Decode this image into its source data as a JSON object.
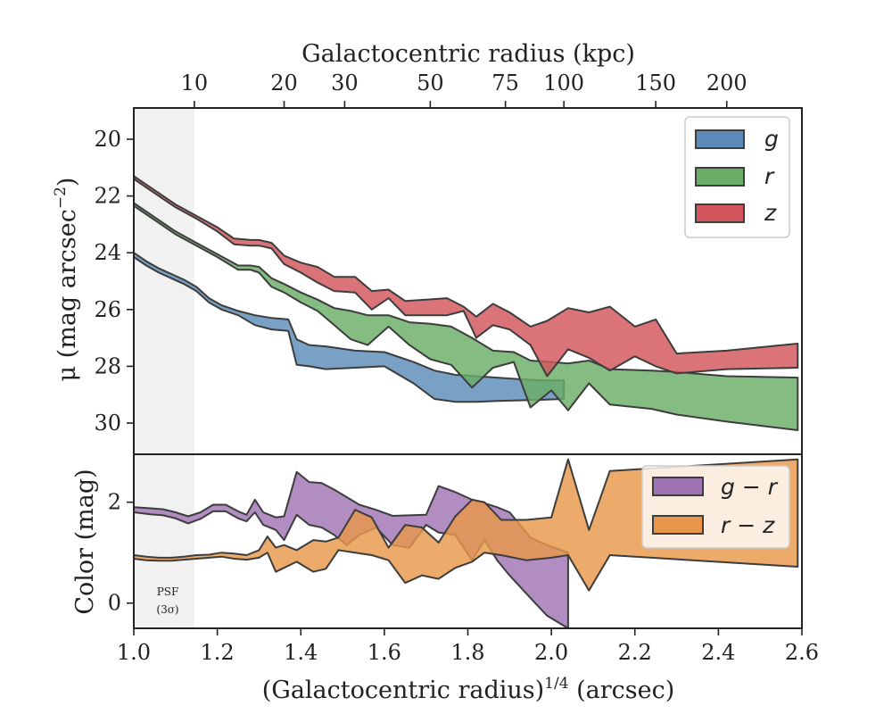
{
  "chart_data": [
    {
      "type": "area",
      "panel": "top",
      "xlabel": "(Galactocentric radius)",
      "xlabel_sup": "1/4",
      "xlabel_unit": "(arcsec)",
      "ylabel_prefix": "μ (mag arcsec",
      "ylabel_sup": "−2",
      "ylabel_suffix": ")",
      "top_xlabel": "Galactocentric radius (kpc)",
      "xlim": [
        1.0,
        2.6
      ],
      "ylim": [
        31.1,
        18.9
      ],
      "y_inverted": true,
      "yticks": [
        20,
        22,
        24,
        26,
        28,
        30
      ],
      "top_ticks": [
        {
          "label": "10",
          "x": 1.145
        },
        {
          "label": "20",
          "x": 1.36
        },
        {
          "label": "30",
          "x": 1.505
        },
        {
          "label": "50",
          "x": 1.71
        },
        {
          "label": "75",
          "x": 1.89
        },
        {
          "label": "100",
          "x": 2.03
        },
        {
          "label": "150",
          "x": 2.25
        },
        {
          "label": "200",
          "x": 2.42
        }
      ],
      "psf_shade_xmax": 1.145,
      "legend_position": "upper-right",
      "series": [
        {
          "name": "g",
          "color": "#5b8bb8",
          "x": [
            1.0,
            1.03,
            1.06,
            1.09,
            1.12,
            1.15,
            1.18,
            1.21,
            1.25,
            1.29,
            1.33,
            1.37,
            1.39,
            1.42,
            1.46,
            1.53,
            1.6,
            1.67,
            1.72,
            1.77,
            1.82,
            1.87,
            1.92,
            1.98,
            2.03
          ],
          "y_upper": [
            24.0,
            24.3,
            24.55,
            24.75,
            24.95,
            25.2,
            25.6,
            25.85,
            26.05,
            26.2,
            26.3,
            26.35,
            27.05,
            27.25,
            27.3,
            27.45,
            27.5,
            27.85,
            28.15,
            28.3,
            28.35,
            28.4,
            28.45,
            28.5,
            28.5
          ],
          "y_lower": [
            24.15,
            24.45,
            24.7,
            24.9,
            25.1,
            25.35,
            25.75,
            26.0,
            26.2,
            26.55,
            26.7,
            26.75,
            27.95,
            28.0,
            28.1,
            28.05,
            28.0,
            28.6,
            29.15,
            29.25,
            29.25,
            29.22,
            29.2,
            29.18,
            29.15
          ]
        },
        {
          "name": "r",
          "color": "#6aad66",
          "x": [
            1.0,
            1.05,
            1.1,
            1.15,
            1.2,
            1.25,
            1.28,
            1.3,
            1.33,
            1.36,
            1.4,
            1.44,
            1.48,
            1.52,
            1.56,
            1.61,
            1.66,
            1.71,
            1.76,
            1.81,
            1.86,
            1.91,
            1.95,
            2.0,
            2.04,
            2.09,
            2.14,
            2.24,
            2.3,
            2.42,
            2.59
          ],
          "y_upper": [
            22.25,
            22.75,
            23.25,
            23.65,
            24.05,
            24.45,
            24.45,
            24.5,
            24.9,
            25.1,
            25.4,
            25.65,
            25.95,
            26.05,
            26.2,
            26.2,
            26.45,
            26.5,
            26.6,
            27.0,
            27.45,
            27.5,
            27.8,
            27.85,
            27.9,
            27.8,
            28.1,
            28.15,
            28.2,
            28.35,
            28.4
          ],
          "y_lower": [
            22.35,
            22.85,
            23.35,
            23.75,
            24.15,
            24.6,
            24.6,
            24.7,
            25.2,
            25.4,
            25.75,
            26.05,
            26.55,
            27.05,
            27.25,
            26.6,
            27.25,
            27.75,
            27.95,
            28.75,
            28.05,
            27.85,
            29.45,
            28.85,
            29.55,
            28.6,
            29.35,
            29.5,
            29.7,
            29.95,
            30.25
          ]
        },
        {
          "name": "z",
          "color": "#d3565c",
          "x": [
            1.0,
            1.05,
            1.1,
            1.15,
            1.2,
            1.24,
            1.28,
            1.3,
            1.33,
            1.36,
            1.4,
            1.44,
            1.48,
            1.53,
            1.57,
            1.61,
            1.65,
            1.7,
            1.75,
            1.79,
            1.82,
            1.86,
            1.9,
            1.95,
            1.99,
            2.04,
            2.09,
            2.14,
            2.2,
            2.25,
            2.3,
            2.42,
            2.59
          ],
          "y_upper": [
            21.3,
            21.8,
            22.3,
            22.7,
            23.1,
            23.5,
            23.55,
            23.55,
            23.65,
            24.1,
            24.35,
            24.5,
            24.85,
            24.85,
            25.35,
            25.3,
            25.7,
            25.65,
            25.6,
            25.9,
            26.25,
            25.8,
            26.1,
            26.6,
            26.4,
            25.95,
            26.1,
            25.9,
            26.6,
            26.35,
            27.55,
            27.45,
            27.2
          ],
          "y_lower": [
            21.4,
            21.9,
            22.4,
            22.8,
            23.25,
            23.7,
            23.75,
            23.75,
            23.85,
            24.4,
            24.7,
            25.05,
            25.35,
            25.4,
            26.0,
            25.6,
            26.2,
            26.2,
            26.2,
            26.05,
            27.0,
            26.55,
            26.7,
            27.25,
            28.35,
            27.4,
            27.7,
            28.15,
            27.65,
            28.0,
            28.25,
            28.1,
            28.05
          ]
        }
      ]
    },
    {
      "type": "area",
      "panel": "bottom",
      "ylabel": "Color (mag)",
      "xlabel": "(Galactocentric radius)",
      "xlabel_sup": "1/4",
      "xlabel_unit": "(arcsec)",
      "xlim": [
        1.0,
        2.6
      ],
      "ylim": [
        -0.5,
        2.95
      ],
      "xticks": [
        1.0,
        1.2,
        1.4,
        1.6,
        1.8,
        2.0,
        2.2,
        2.4,
        2.6
      ],
      "xtick_labels": [
        "1.0",
        "1.2",
        "1.4",
        "1.6",
        "1.8",
        "2.0",
        "2.2",
        "2.4",
        "2.6"
      ],
      "yticks": [
        0,
        2
      ],
      "psf_shade_xmax": 1.145,
      "psf_label_line1": "PSF",
      "psf_label_line2": "(3σ)",
      "legend_position": "upper-right",
      "series": [
        {
          "name": "g − r",
          "color": "#a074b4",
          "x": [
            1.0,
            1.04,
            1.07,
            1.1,
            1.13,
            1.16,
            1.19,
            1.22,
            1.25,
            1.27,
            1.29,
            1.31,
            1.34,
            1.36,
            1.39,
            1.42,
            1.45,
            1.48,
            1.51,
            1.54,
            1.58,
            1.62,
            1.66,
            1.7,
            1.73,
            1.77,
            1.81,
            1.84,
            1.87,
            1.9,
            1.95,
            1.99,
            2.04
          ],
          "y_upper": [
            1.9,
            1.88,
            1.86,
            1.8,
            1.72,
            1.8,
            1.95,
            1.95,
            1.82,
            1.75,
            2.05,
            1.8,
            1.7,
            1.72,
            2.6,
            2.4,
            2.38,
            2.25,
            2.1,
            1.95,
            1.85,
            1.73,
            1.74,
            1.75,
            2.32,
            2.2,
            2.05,
            1.98,
            1.9,
            1.8,
            1.3,
            1.15,
            1.0
          ],
          "y_lower": [
            1.8,
            1.76,
            1.74,
            1.68,
            1.58,
            1.67,
            1.82,
            1.82,
            1.68,
            1.62,
            1.8,
            1.55,
            1.45,
            1.25,
            1.75,
            1.55,
            1.5,
            1.35,
            1.15,
            1.35,
            1.5,
            1.15,
            1.1,
            1.55,
            1.4,
            1.35,
            0.85,
            1.25,
            0.85,
            0.55,
            0.1,
            -0.25,
            -0.5
          ]
        },
        {
          "name": "r − z",
          "color": "#e8974a",
          "x": [
            1.0,
            1.03,
            1.06,
            1.09,
            1.12,
            1.15,
            1.18,
            1.21,
            1.24,
            1.27,
            1.3,
            1.32,
            1.34,
            1.36,
            1.39,
            1.43,
            1.46,
            1.49,
            1.53,
            1.57,
            1.61,
            1.65,
            1.69,
            1.73,
            1.77,
            1.81,
            1.84,
            1.88,
            1.94,
            2.0,
            2.04,
            2.09,
            2.14,
            2.59
          ],
          "y_upper": [
            0.95,
            0.92,
            0.9,
            0.9,
            0.92,
            0.95,
            0.96,
            1.0,
            0.98,
            0.95,
            1.05,
            1.32,
            1.1,
            1.15,
            1.05,
            1.25,
            1.22,
            1.3,
            1.85,
            1.7,
            1.1,
            1.55,
            1.5,
            1.2,
            1.72,
            2.05,
            2.0,
            1.65,
            1.65,
            1.7,
            2.85,
            1.45,
            2.62,
            2.85
          ],
          "y_lower": [
            0.88,
            0.85,
            0.84,
            0.84,
            0.86,
            0.88,
            0.9,
            0.92,
            0.88,
            0.86,
            0.9,
            1.0,
            0.62,
            0.7,
            0.82,
            0.62,
            0.68,
            1.05,
            1.0,
            0.95,
            0.85,
            0.4,
            0.55,
            0.48,
            0.7,
            0.82,
            1.0,
            0.95,
            0.85,
            0.9,
            0.95,
            0.25,
            0.95,
            0.72
          ]
        }
      ]
    }
  ]
}
